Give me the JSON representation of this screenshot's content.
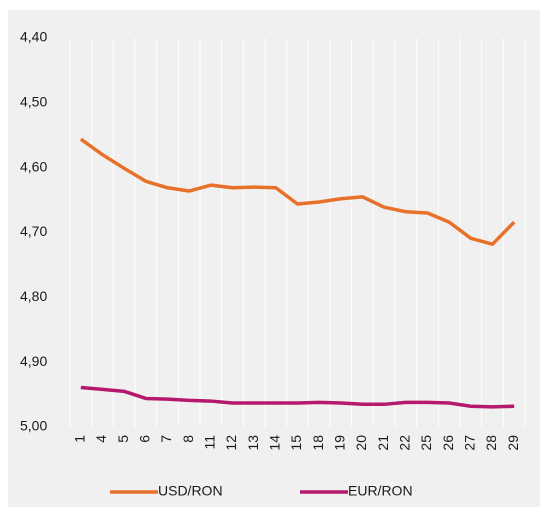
{
  "chart_data": {
    "type": "line",
    "categories": [
      "1",
      "4",
      "5",
      "6",
      "7",
      "8",
      "11",
      "12",
      "13",
      "14",
      "15",
      "18",
      "19",
      "20",
      "21",
      "22",
      "25",
      "26",
      "27",
      "28",
      "29"
    ],
    "series": [
      {
        "name": "USD/RON",
        "color": "#e8712a",
        "values": [
          4.556,
          4.58,
          4.601,
          4.621,
          4.631,
          4.636,
          4.627,
          4.631,
          4.63,
          4.631,
          4.656,
          4.653,
          4.648,
          4.645,
          4.661,
          4.668,
          4.67,
          4.684,
          4.709,
          4.718,
          4.684
        ]
      },
      {
        "name": "EUR/RON",
        "color": "#b5196e",
        "values": [
          4.939,
          4.942,
          4.945,
          4.956,
          4.957,
          4.959,
          4.96,
          4.963,
          4.963,
          4.963,
          4.963,
          4.962,
          4.963,
          4.965,
          4.965,
          4.962,
          4.962,
          4.963,
          4.968,
          4.969,
          4.968
        ]
      }
    ],
    "ylim": [
      5.0,
      4.4
    ],
    "yticks": [
      {
        "value": 4.4,
        "label": "4,40"
      },
      {
        "value": 4.5,
        "label": "4,50"
      },
      {
        "value": 4.6,
        "label": "4,60"
      },
      {
        "value": 4.7,
        "label": "4,70"
      },
      {
        "value": 4.8,
        "label": "4,80"
      },
      {
        "value": 4.9,
        "label": "4,90"
      },
      {
        "value": 5.0,
        "label": "5,00"
      }
    ],
    "grid": true,
    "legend": "bottom"
  }
}
